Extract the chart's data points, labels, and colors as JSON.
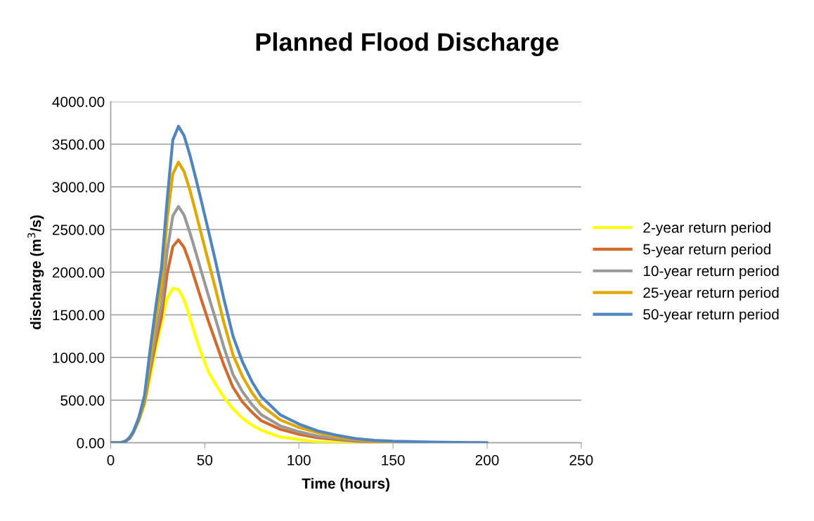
{
  "chart_data": {
    "type": "line",
    "title": "Planned Flood Discharge",
    "xlabel": "Time (hours)",
    "ylabel": "discharge (m$^{3}$/s)",
    "x": [
      0,
      5,
      8,
      10,
      12,
      15,
      18,
      21,
      24,
      27,
      30,
      33,
      36,
      39,
      42,
      45,
      48,
      52,
      56,
      60,
      65,
      70,
      75,
      80,
      90,
      100,
      110,
      120,
      130,
      140,
      150,
      170,
      200
    ],
    "xlim": [
      0,
      250
    ],
    "xticks": [
      0,
      50,
      100,
      150,
      200,
      250
    ],
    "ylim": [
      0,
      4000
    ],
    "yticks": [
      {
        "value": 0,
        "label": "0.00"
      },
      {
        "value": 500,
        "label": "500.00"
      },
      {
        "value": 1000,
        "label": "1000.00"
      },
      {
        "value": 1500,
        "label": "1500.00"
      },
      {
        "value": 2000,
        "label": "2000.00"
      },
      {
        "value": 2500,
        "label": "2500.00"
      },
      {
        "value": 3000,
        "label": "3000.00"
      },
      {
        "value": 3500,
        "label": "3500.00"
      },
      {
        "value": 4000,
        "label": "4000.00"
      }
    ],
    "grid": "y",
    "legend": "right",
    "marker": "none",
    "line_style": "solid",
    "series": [
      {
        "name": "2-year return period",
        "color": "#ffff00",
        "values": [
          null,
          null,
          20,
          50,
          120,
          260,
          450,
          760,
          1100,
          1400,
          1690,
          1810,
          1800,
          1680,
          1480,
          1260,
          1060,
          830,
          680,
          540,
          400,
          290,
          210,
          150,
          70,
          40,
          10,
          10,
          0,
          0,
          null,
          null,
          null
        ]
      },
      {
        "name": "5-year return period",
        "color": "#d36a2b",
        "values": [
          0,
          0,
          20,
          50,
          120,
          270,
          480,
          850,
          1180,
          1480,
          1980,
          2300,
          2380,
          2290,
          2110,
          1900,
          1690,
          1420,
          1170,
          920,
          650,
          480,
          360,
          260,
          160,
          100,
          60,
          40,
          20,
          10,
          10,
          null,
          null
        ]
      },
      {
        "name": "10-year return period",
        "color": "#999999",
        "values": [
          0,
          0,
          20,
          60,
          120,
          280,
          500,
          900,
          1280,
          1620,
          2250,
          2660,
          2770,
          2670,
          2470,
          2250,
          2020,
          1720,
          1430,
          1130,
          800,
          600,
          450,
          330,
          200,
          130,
          80,
          50,
          30,
          20,
          10,
          0,
          0
        ]
      },
      {
        "name": "25-year return period",
        "color": "#e0a800",
        "values": [
          0,
          0,
          20,
          60,
          130,
          290,
          530,
          1000,
          1450,
          1850,
          2620,
          3150,
          3290,
          3180,
          2970,
          2720,
          2460,
          2120,
          1780,
          1420,
          1030,
          780,
          590,
          440,
          270,
          180,
          120,
          70,
          40,
          20,
          10,
          null,
          null
        ]
      },
      {
        "name": "50-year return period",
        "color": "#4f86c0",
        "values": [
          0,
          0,
          20,
          60,
          130,
          300,
          560,
          1100,
          1600,
          2050,
          2850,
          3550,
          3710,
          3600,
          3380,
          3120,
          2850,
          2480,
          2100,
          1700,
          1250,
          950,
          720,
          540,
          330,
          220,
          140,
          90,
          50,
          30,
          20,
          10,
          0
        ]
      }
    ]
  }
}
